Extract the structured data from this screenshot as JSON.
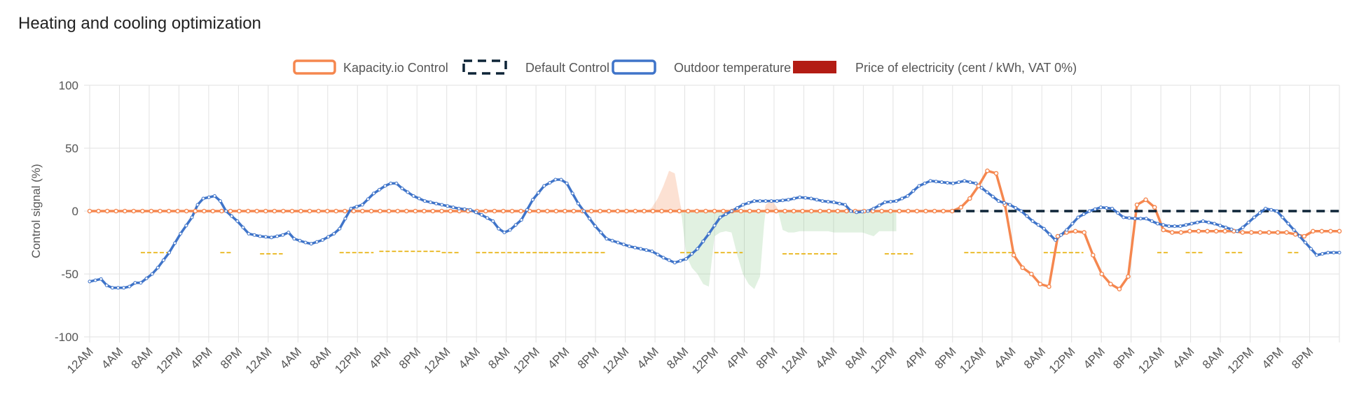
{
  "chart_data": {
    "type": "line",
    "title": "Heating and cooling optimization",
    "ylabel": "Control signal (%)",
    "ylim": [
      -100,
      100
    ],
    "yticks": [
      100,
      50,
      0,
      -50,
      -100
    ],
    "grid": true,
    "legend_position": "top",
    "x_tick_labels": [
      "12AM",
      "4AM",
      "8AM",
      "12PM",
      "4PM",
      "8PM",
      "12AM",
      "4AM",
      "8AM",
      "12PM",
      "4PM",
      "8PM",
      "12AM",
      "4AM",
      "8AM",
      "12PM",
      "4PM",
      "8PM",
      "12AM",
      "4AM",
      "8AM",
      "12PM",
      "4PM",
      "8PM",
      "12AM",
      "4AM",
      "8AM",
      "12PM",
      "4PM",
      "8PM",
      "12AM",
      "4AM",
      "8AM",
      "12PM",
      "4PM",
      "8PM",
      "12AM",
      "4AM",
      "8AM",
      "12PM",
      "4PM",
      "8PM"
    ],
    "series": [
      {
        "name": "Kapacity.io Control",
        "color": "#f5874f",
        "points": [
          [
            0,
            0
          ],
          [
            72,
            0
          ],
          [
            98,
            0
          ],
          [
            99,
            3
          ],
          [
            100,
            10
          ],
          [
            101,
            20
          ],
          [
            102,
            32
          ],
          [
            103,
            30
          ],
          [
            104,
            5
          ],
          [
            105,
            -35
          ],
          [
            106,
            -45
          ],
          [
            107,
            -50
          ],
          [
            108,
            -58
          ],
          [
            109,
            -60
          ],
          [
            110,
            -20
          ],
          [
            111,
            -17
          ],
          [
            112,
            -16
          ],
          [
            113,
            -17
          ],
          [
            114,
            -35
          ],
          [
            115,
            -50
          ],
          [
            116,
            -58
          ],
          [
            117,
            -62
          ],
          [
            118,
            -52
          ],
          [
            119,
            5
          ],
          [
            120,
            9
          ],
          [
            121,
            3
          ],
          [
            122,
            -15
          ],
          [
            123,
            -17
          ],
          [
            124,
            -17
          ],
          [
            125,
            -16
          ],
          [
            126,
            -16
          ],
          [
            130,
            -16
          ],
          [
            131,
            -17
          ],
          [
            136,
            -17
          ],
          [
            138,
            -20
          ],
          [
            139,
            -16
          ],
          [
            142,
            -16
          ]
        ]
      },
      {
        "name": "Default Control",
        "color": "#0d2437",
        "points": [
          [
            98,
            0
          ],
          [
            142,
            0
          ]
        ]
      },
      {
        "name": "Outdoor temperature",
        "color": "#3f74c9",
        "points": [
          [
            0,
            -56
          ],
          [
            2,
            -54
          ],
          [
            3,
            -59
          ],
          [
            4,
            -61
          ],
          [
            6,
            -61
          ],
          [
            7,
            -60
          ],
          [
            8,
            -57
          ],
          [
            9,
            -57
          ],
          [
            11,
            -50
          ],
          [
            12,
            -45
          ],
          [
            14,
            -33
          ],
          [
            16,
            -18
          ],
          [
            18,
            -5
          ],
          [
            19,
            5
          ],
          [
            20,
            10
          ],
          [
            22,
            12
          ],
          [
            23,
            8
          ],
          [
            24,
            0
          ],
          [
            26,
            -8
          ],
          [
            28,
            -18
          ],
          [
            30,
            -20
          ],
          [
            32,
            -21
          ],
          [
            34,
            -19
          ],
          [
            35,
            -17
          ],
          [
            36,
            -22
          ],
          [
            38,
            -25
          ],
          [
            39,
            -26
          ],
          [
            41,
            -23
          ],
          [
            43,
            -18
          ],
          [
            44,
            -14
          ],
          [
            46,
            2
          ],
          [
            48,
            5
          ],
          [
            50,
            14
          ],
          [
            52,
            20
          ],
          [
            53,
            22
          ],
          [
            54,
            22
          ],
          [
            55,
            18
          ],
          [
            57,
            12
          ],
          [
            59,
            8
          ],
          [
            61,
            6
          ],
          [
            63,
            4
          ],
          [
            65,
            2
          ],
          [
            67,
            1
          ],
          [
            69,
            -3
          ],
          [
            71,
            -8
          ],
          [
            72,
            -14
          ],
          [
            73,
            -17
          ],
          [
            74,
            -15
          ],
          [
            76,
            -7
          ],
          [
            78,
            9
          ],
          [
            80,
            20
          ],
          [
            82,
            25
          ],
          [
            83,
            25
          ],
          [
            84,
            22
          ],
          [
            86,
            6
          ],
          [
            87,
            0
          ],
          [
            89,
            -12
          ],
          [
            91,
            -22
          ],
          [
            93,
            -25
          ],
          [
            95,
            -28
          ],
          [
            97,
            -30
          ],
          [
            99,
            -32
          ],
          [
            101,
            -37
          ],
          [
            103,
            -41
          ],
          [
            105,
            -38
          ],
          [
            107,
            -30
          ],
          [
            109,
            -18
          ],
          [
            111,
            -5
          ],
          [
            113,
            0
          ],
          [
            115,
            5
          ],
          [
            117,
            8
          ],
          [
            119,
            8
          ],
          [
            121,
            8
          ],
          [
            123,
            9
          ],
          [
            125,
            11
          ],
          [
            127,
            10
          ],
          [
            129,
            8
          ],
          [
            131,
            7
          ],
          [
            133,
            5
          ],
          [
            134,
            0
          ],
          [
            135,
            -1
          ],
          [
            137,
            0
          ],
          [
            138,
            2
          ],
          [
            140,
            7
          ],
          [
            142,
            8
          ],
          [
            144,
            12
          ],
          [
            146,
            20
          ],
          [
            148,
            24
          ],
          [
            150,
            23
          ],
          [
            152,
            22
          ],
          [
            154,
            24
          ],
          [
            156,
            22
          ],
          [
            158,
            15
          ],
          [
            160,
            8
          ],
          [
            162,
            5
          ],
          [
            164,
            0
          ],
          [
            166,
            -8
          ],
          [
            168,
            -14
          ],
          [
            170,
            -23
          ],
          [
            172,
            -15
          ],
          [
            174,
            -5
          ],
          [
            176,
            0
          ],
          [
            178,
            3
          ],
          [
            180,
            2
          ],
          [
            182,
            -5
          ],
          [
            184,
            -6
          ],
          [
            186,
            -6
          ],
          [
            188,
            -10
          ],
          [
            190,
            -12
          ],
          [
            192,
            -12
          ],
          [
            194,
            -10
          ],
          [
            196,
            -8
          ],
          [
            198,
            -10
          ],
          [
            200,
            -13
          ],
          [
            202,
            -16
          ],
          [
            203,
            -13
          ],
          [
            205,
            -5
          ],
          [
            207,
            2
          ],
          [
            209,
            0
          ],
          [
            211,
            -10
          ],
          [
            213,
            -20
          ],
          [
            215,
            -30
          ],
          [
            216,
            -35
          ],
          [
            218,
            -33
          ],
          [
            220,
            -33
          ]
        ]
      },
      {
        "name": "Price of electricity (cent / kWh, VAT 0%)",
        "color": "#b31c14",
        "bar_color": "#e6ad00",
        "segments": [
          [
            9,
            14,
            -33
          ],
          [
            23,
            25,
            -33
          ],
          [
            30,
            34,
            -34
          ],
          [
            44,
            50,
            -33
          ],
          [
            51,
            62,
            -32
          ],
          [
            62,
            65,
            -33
          ],
          [
            68,
            80,
            -33
          ],
          [
            80,
            91,
            -33
          ],
          [
            104,
            106,
            -33
          ],
          [
            110,
            115,
            -33
          ],
          [
            122,
            132,
            -34
          ],
          [
            140,
            145,
            -34
          ],
          [
            154,
            163,
            -33
          ],
          [
            168,
            175,
            -33
          ],
          [
            188,
            190,
            -33
          ],
          [
            193,
            196,
            -33
          ],
          [
            200,
            203,
            -33
          ],
          [
            211,
            213,
            -33
          ]
        ]
      }
    ]
  }
}
